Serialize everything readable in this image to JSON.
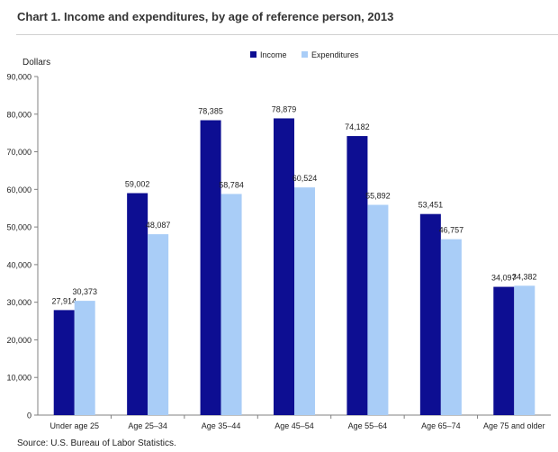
{
  "page": {
    "title": "Chart 1. Income and expenditures, by age of reference person, 2013",
    "source": "Source: U.S. Bureau of Labor Statistics."
  },
  "colors": {
    "income": "#0d0e92",
    "expenditures": "#a9cdf7",
    "axis": "#808080",
    "text": "#222222"
  },
  "chart_data": {
    "type": "bar",
    "title": "Chart 1. Income and expenditures, by age of reference person, 2013",
    "xlabel": "",
    "ylabel": "Dollars",
    "ylim": [
      0,
      90000
    ],
    "yticks": [
      0,
      10000,
      20000,
      30000,
      40000,
      50000,
      60000,
      70000,
      80000,
      90000
    ],
    "ytick_labels": [
      "0",
      "10,000",
      "20,000",
      "30,000",
      "40,000",
      "50,000",
      "60,000",
      "70,000",
      "80,000",
      "90,000"
    ],
    "grid": false,
    "legend_position": "top-center",
    "categories": [
      "Under age 25",
      "Age 25–34",
      "Age 35–44",
      "Age 45–54",
      "Age 55–64",
      "Age 65–74",
      "Age 75 and older"
    ],
    "series": [
      {
        "name": "Income",
        "values": [
          27914,
          59002,
          78385,
          78879,
          74182,
          53451,
          34097
        ],
        "labels": [
          "27,914",
          "59,002",
          "78,385",
          "78,879",
          "74,182",
          "53,451",
          "34,097"
        ]
      },
      {
        "name": "Expenditures",
        "values": [
          30373,
          48087,
          58784,
          60524,
          55892,
          46757,
          34382
        ],
        "labels": [
          "30,373",
          "48,087",
          "58,784",
          "60,524",
          "55,892",
          "46,757",
          "34,382"
        ]
      }
    ]
  }
}
